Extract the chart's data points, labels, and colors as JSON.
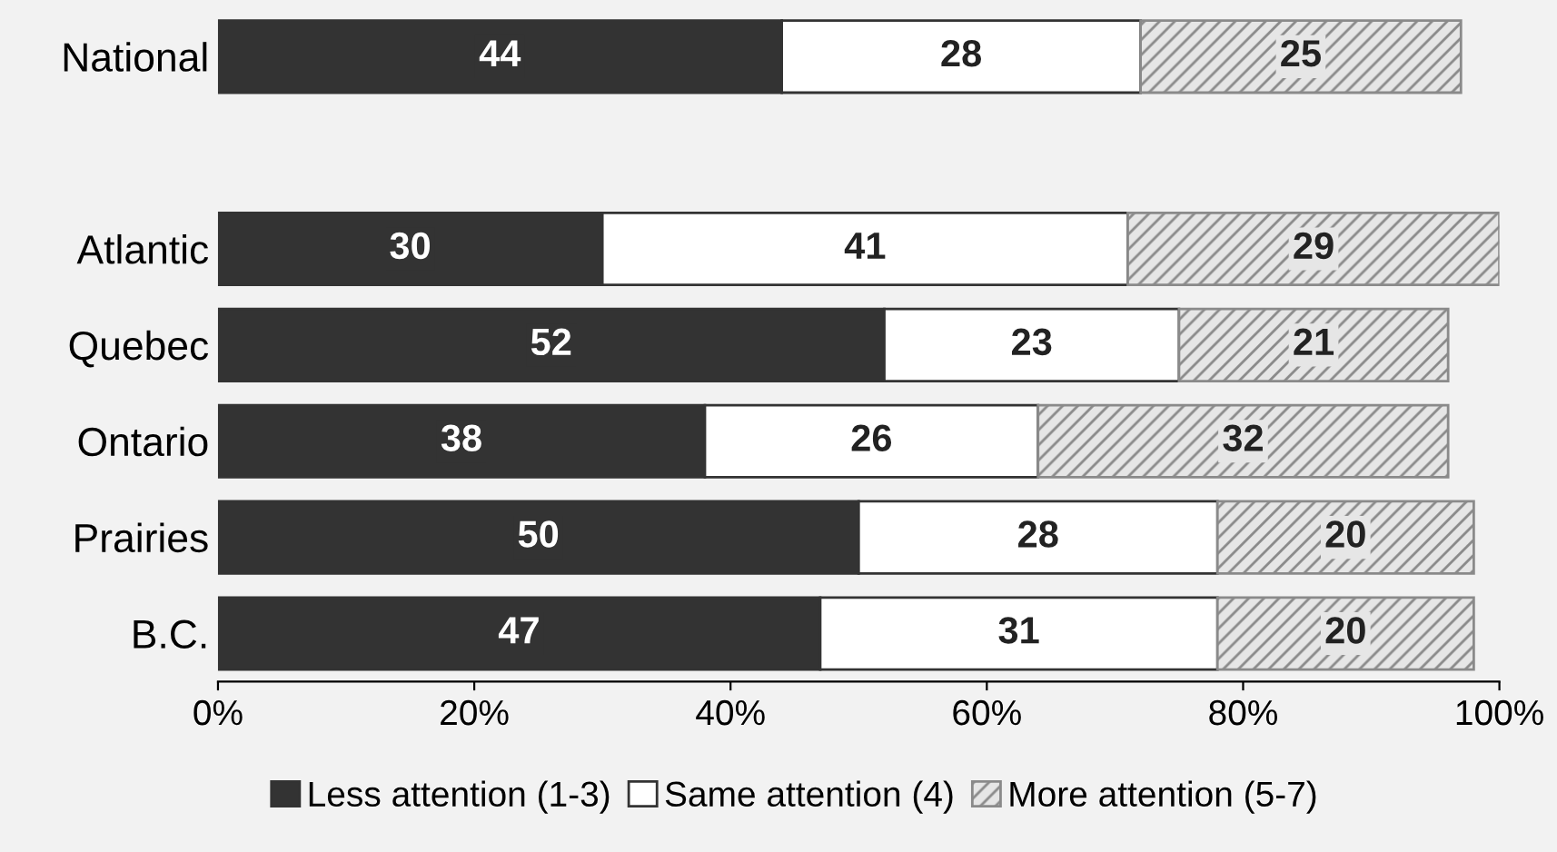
{
  "chart_data": {
    "type": "bar",
    "orientation": "horizontal",
    "stacked": true,
    "categories": [
      "National",
      null,
      "Atlantic",
      "Quebec",
      "Ontario",
      "Prairies",
      "B.C."
    ],
    "series": [
      {
        "name": "Less attention (1-3)",
        "color": "#333333",
        "values": [
          44,
          null,
          30,
          52,
          38,
          50,
          47
        ]
      },
      {
        "name": "Same attention (4)",
        "color": "#ffffff",
        "values": [
          28,
          null,
          41,
          23,
          26,
          28,
          31
        ]
      },
      {
        "name": "More attention (5-7)",
        "color": "#8a8a8a",
        "values": [
          25,
          null,
          29,
          21,
          32,
          20,
          20
        ]
      }
    ],
    "data_labels": true,
    "xlim": [
      0,
      100
    ],
    "xticks": [
      {
        "value": 0,
        "label": "0%"
      },
      {
        "value": 20,
        "label": "20%"
      },
      {
        "value": 40,
        "label": "40%"
      },
      {
        "value": 60,
        "label": "60%"
      },
      {
        "value": 80,
        "label": "80%"
      },
      {
        "value": 100,
        "label": "100%"
      }
    ],
    "legend": "bottom",
    "grid": false
  }
}
